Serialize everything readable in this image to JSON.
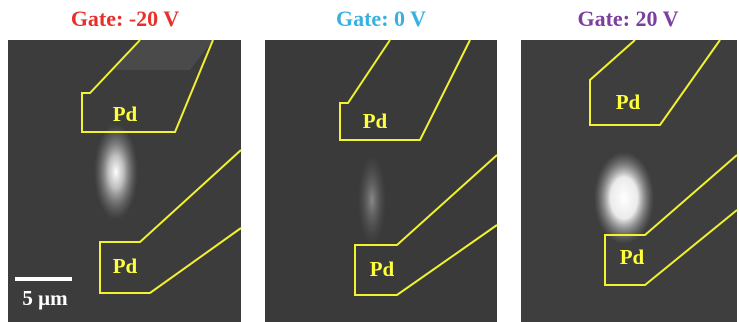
{
  "panels": [
    {
      "title": "Gate: -20 V",
      "labels": [
        "Pd",
        "Pd"
      ]
    },
    {
      "title": "Gate: 0 V",
      "labels": [
        "Pd",
        "Pd"
      ]
    },
    {
      "title": "Gate: 20 V",
      "labels": [
        "Pd",
        "Pd"
      ]
    }
  ],
  "scale_bar": {
    "label": "5 μm"
  }
}
